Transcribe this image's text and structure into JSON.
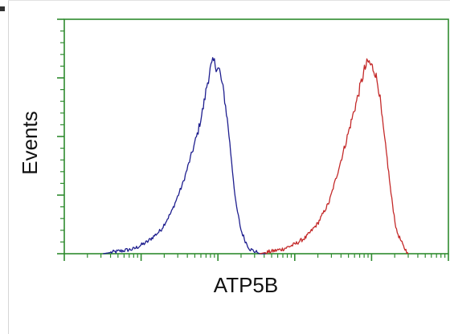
{
  "chart_data": {
    "type": "line",
    "title": "",
    "xlabel": "ATP5B",
    "ylabel": "Events",
    "x_scale": "log",
    "xlim": [
      1,
      100000
    ],
    "ylim": [
      0,
      1
    ],
    "grid": false,
    "legend": "none",
    "series": [
      {
        "color": "#1f1f8f",
        "x": [
          3.2,
          5,
          8,
          12,
          18,
          25,
          35,
          45,
          55,
          65,
          72,
          80,
          88,
          95,
          105,
          120,
          135,
          150,
          170,
          200,
          230,
          260,
          300,
          350,
          420
        ],
        "y": [
          0.0,
          0.01,
          0.02,
          0.05,
          0.1,
          0.18,
          0.3,
          0.42,
          0.52,
          0.63,
          0.72,
          0.79,
          0.82,
          0.8,
          0.78,
          0.68,
          0.55,
          0.4,
          0.22,
          0.1,
          0.05,
          0.02,
          0.01,
          0.0,
          0.0
        ]
      },
      {
        "color": "#c42a2a",
        "x": [
          350,
          500,
          700,
          1000,
          1400,
          2000,
          2800,
          3500,
          4500,
          5500,
          6500,
          7200,
          8000,
          9000,
          10000,
          11000,
          12500,
          14000,
          16000,
          18000,
          21000,
          26000,
          30000
        ],
        "y": [
          0.0,
          0.01,
          0.02,
          0.04,
          0.07,
          0.13,
          0.22,
          0.33,
          0.46,
          0.57,
          0.66,
          0.72,
          0.78,
          0.82,
          0.8,
          0.78,
          0.7,
          0.55,
          0.4,
          0.25,
          0.1,
          0.03,
          0.0
        ]
      }
    ],
    "colors": {
      "axis": "#2e8b2e"
    }
  }
}
